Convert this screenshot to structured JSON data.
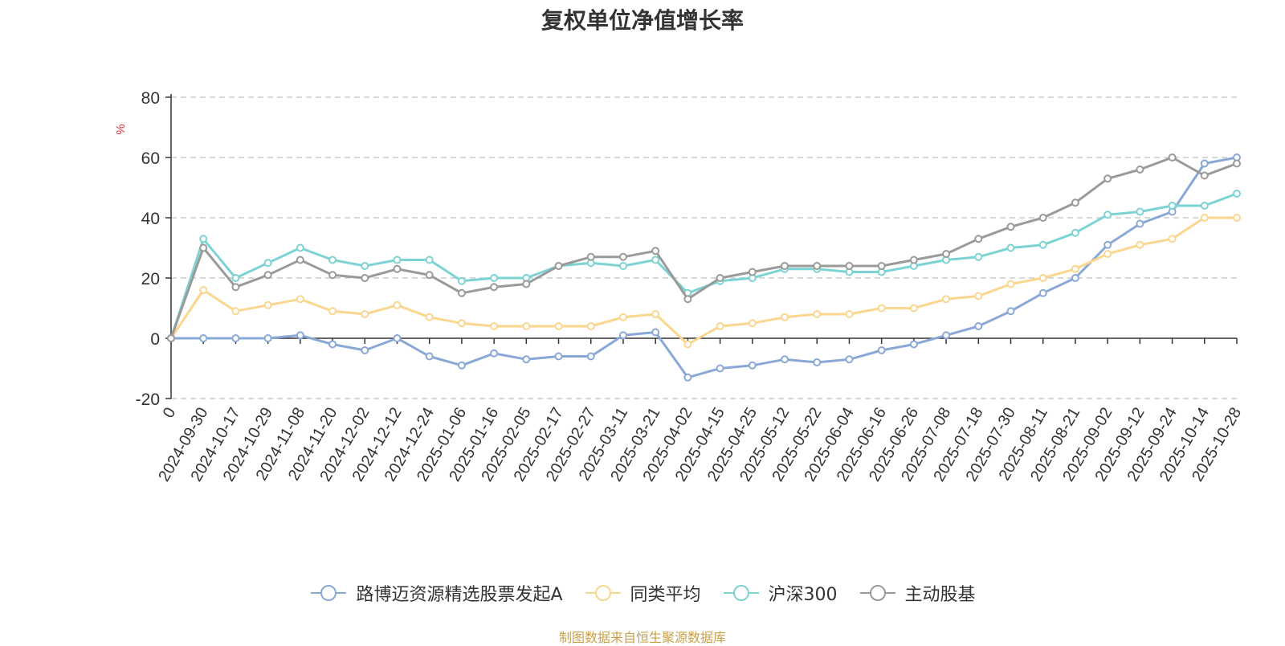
{
  "title": "复权单位净值增长率",
  "footer": "制图数据来自恒生聚源数据库",
  "chart_data": {
    "type": "line",
    "title": "复权单位净值增长率",
    "ylabel": "%",
    "ylim": [
      -20,
      80
    ],
    "yticks": [
      -20,
      0,
      20,
      40,
      60,
      80
    ],
    "grid": true,
    "legend_position": "bottom",
    "x": [
      "0",
      "2024-09-30",
      "2024-10-17",
      "2024-10-29",
      "2024-11-08",
      "2024-11-20",
      "2024-12-02",
      "2024-12-12",
      "2024-12-24",
      "2025-01-06",
      "2025-01-16",
      "2025-02-05",
      "2025-02-17",
      "2025-02-27",
      "2025-03-11",
      "2025-03-21",
      "2025-04-02",
      "2025-04-15",
      "2025-04-25",
      "2025-05-12",
      "2025-05-22",
      "2025-06-04",
      "2025-06-16",
      "2025-06-26",
      "2025-07-08",
      "2025-07-18",
      "2025-07-30",
      "2025-08-11",
      "2025-08-21",
      "2025-09-02",
      "2025-09-12",
      "2025-09-24",
      "2025-10-14",
      "2025-10-28"
    ],
    "series": [
      {
        "name": "路博迈资源精选股票发起A",
        "color": "#8aa8d6",
        "values": [
          0,
          0,
          0,
          0,
          1,
          -2,
          -4,
          0,
          -6,
          -9,
          -5,
          -7,
          -6,
          -6,
          1,
          2,
          -13,
          -10,
          -9,
          -7,
          -8,
          -7,
          -4,
          -2,
          1,
          4,
          9,
          15,
          20,
          31,
          38,
          42,
          58,
          60
        ]
      },
      {
        "name": "同类平均",
        "color": "#fad68f",
        "values": [
          0,
          16,
          9,
          11,
          13,
          9,
          8,
          11,
          7,
          5,
          4,
          4,
          4,
          4,
          7,
          8,
          -2,
          4,
          5,
          7,
          8,
          8,
          10,
          10,
          13,
          14,
          18,
          20,
          23,
          28,
          31,
          33,
          40,
          40
        ]
      },
      {
        "name": "沪深300",
        "color": "#7dd3d3",
        "values": [
          0,
          33,
          20,
          25,
          30,
          26,
          24,
          26,
          26,
          19,
          20,
          20,
          24,
          25,
          24,
          26,
          15,
          19,
          20,
          23,
          23,
          22,
          22,
          24,
          26,
          27,
          30,
          31,
          35,
          41,
          42,
          44,
          44,
          48
        ]
      },
      {
        "name": "主动股基",
        "color": "#9a9a9a",
        "values": [
          0,
          30,
          17,
          21,
          26,
          21,
          20,
          23,
          21,
          15,
          17,
          18,
          24,
          27,
          27,
          29,
          13,
          20,
          22,
          24,
          24,
          24,
          24,
          26,
          28,
          33,
          37,
          40,
          45,
          53,
          56,
          60,
          54,
          58
        ]
      }
    ]
  }
}
